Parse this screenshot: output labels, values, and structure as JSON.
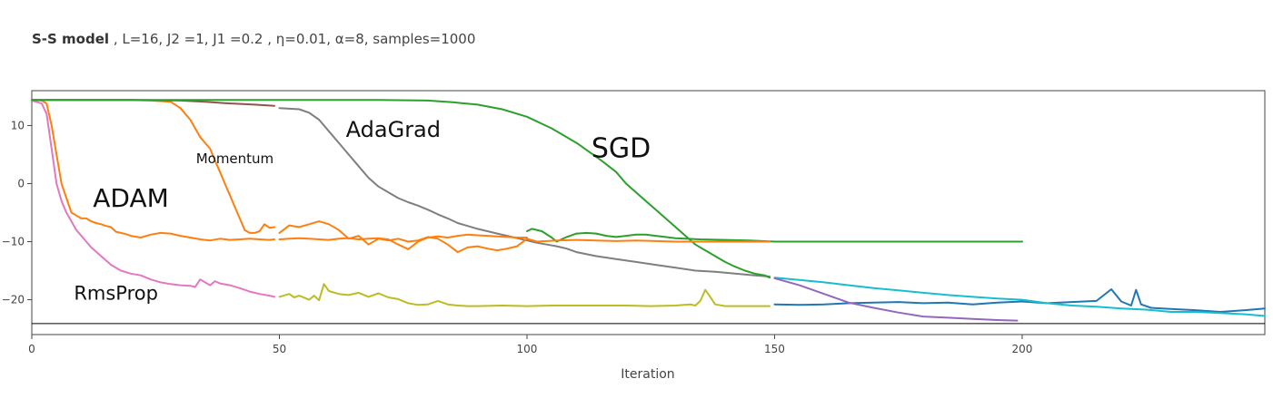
{
  "header": {
    "title_bold": "S-S model",
    "title_rest": " , L=16, J2 =1, J1 =0.2 , η=0.01, α=8, samples=1000"
  },
  "chart_data": {
    "type": "line",
    "title": "S-S model , L=16, J2 =1, J1 =0.2 , η=0.01, α=8, samples=1000",
    "xlabel": "Iteration",
    "ylabel": "",
    "xlim": [
      0,
      249
    ],
    "ylim": [
      -26,
      16
    ],
    "xticks": [
      0,
      50,
      100,
      150,
      200
    ],
    "yticks": [
      10,
      0,
      -10,
      -20
    ],
    "grid": false,
    "reference_line": {
      "y": -24.1,
      "color": "#000000"
    },
    "series": [
      {
        "color": "#e377c2",
        "x": [
          0,
          2,
          3,
          4,
          5,
          6,
          7,
          8,
          9,
          10,
          12,
          14,
          16,
          18,
          20,
          22,
          24,
          26,
          28,
          30,
          32,
          33,
          34,
          35,
          36,
          37,
          38,
          40,
          42,
          44,
          46,
          48,
          49
        ],
        "y": [
          14.3,
          13.8,
          12,
          6,
          0,
          -3,
          -5,
          -6.5,
          -8,
          -9,
          -11,
          -12.5,
          -14,
          -15,
          -15.5,
          -15.8,
          -16.5,
          -17,
          -17.3,
          -17.5,
          -17.6,
          -17.8,
          -16.5,
          -17,
          -17.5,
          -16.8,
          -17.2,
          -17.5,
          -18,
          -18.6,
          -19,
          -19.3,
          -19.5
        ]
      },
      {
        "color": "#ff7f0e",
        "x": [
          0,
          2,
          3,
          4,
          5,
          6,
          7,
          8,
          9,
          10,
          11,
          12,
          13,
          14,
          15,
          16,
          17,
          18,
          19,
          20,
          22,
          24,
          26,
          28,
          30,
          32,
          34,
          36,
          38,
          40,
          42,
          44,
          46,
          48,
          49
        ],
        "y": [
          14.4,
          14.3,
          13.8,
          10,
          5,
          0,
          -2.5,
          -5,
          -5.5,
          -6,
          -6,
          -6.5,
          -6.8,
          -7,
          -7.3,
          -7.5,
          -8.3,
          -8.5,
          -8.7,
          -9,
          -9.3,
          -8.8,
          -8.5,
          -8.6,
          -9,
          -9.3,
          -9.6,
          -9.8,
          -9.5,
          -9.7,
          -9.6,
          -9.5,
          -9.6,
          -9.7,
          -9.6
        ]
      },
      {
        "color": "#ff7f0e",
        "x": [
          0,
          10,
          20,
          24,
          28,
          30,
          32,
          34,
          36,
          37,
          38,
          39,
          40,
          41,
          42,
          43,
          44,
          45,
          46,
          47,
          48,
          49
        ],
        "y": [
          14.4,
          14.4,
          14.4,
          14.3,
          14.1,
          13,
          11,
          8,
          6,
          4,
          2,
          0,
          -2,
          -4,
          -6,
          -8,
          -8.5,
          -8.5,
          -8.2,
          -7,
          -7.6,
          -7.5
        ]
      },
      {
        "color": "#8c564b",
        "x": [
          0,
          10,
          20,
          30,
          35,
          40,
          45,
          49
        ],
        "y": [
          14.4,
          14.4,
          14.4,
          14.3,
          14.1,
          13.8,
          13.6,
          13.4
        ]
      },
      {
        "color": "#7f7f7f",
        "x": [
          50,
          54,
          56,
          58,
          60,
          62,
          64,
          66,
          68,
          70,
          72,
          74,
          76,
          78,
          80,
          82,
          84,
          86,
          88,
          90,
          92,
          94,
          96,
          98,
          100,
          102,
          104,
          106,
          108,
          110,
          114,
          118,
          122,
          126,
          130,
          134,
          138,
          142,
          146,
          149
        ],
        "y": [
          13,
          12.8,
          12.2,
          11,
          9,
          7,
          5,
          3,
          1,
          -0.5,
          -1.5,
          -2.5,
          -3.2,
          -3.8,
          -4.5,
          -5.3,
          -6,
          -6.8,
          -7.3,
          -7.8,
          -8.2,
          -8.6,
          -9,
          -9.4,
          -9.8,
          -10.2,
          -10.5,
          -10.8,
          -11.2,
          -11.8,
          -12.5,
          -13,
          -13.5,
          -14,
          -14.5,
          -15,
          -15.2,
          -15.5,
          -15.8,
          -16
        ]
      },
      {
        "color": "#2ca02c",
        "x": [
          0,
          20,
          40,
          60,
          70,
          80,
          85,
          90,
          95,
          100,
          105,
          110,
          115,
          118,
          120,
          122,
          124,
          126,
          128,
          130,
          132,
          134,
          136,
          138,
          140,
          142,
          144,
          146,
          148,
          149
        ],
        "y": [
          14.4,
          14.4,
          14.4,
          14.4,
          14.4,
          14.3,
          14,
          13.6,
          12.8,
          11.5,
          9.5,
          7,
          4,
          2,
          0,
          -1.5,
          -3,
          -4.5,
          -6,
          -7.5,
          -9,
          -10.5,
          -11.5,
          -12.5,
          -13.5,
          -14.3,
          -15,
          -15.5,
          -15.8,
          -16.2
        ]
      },
      {
        "color": "#2ca02c",
        "x": [
          100,
          101,
          103,
          105,
          106,
          108,
          110,
          112,
          114,
          116,
          118,
          120,
          122,
          124,
          126,
          128,
          130,
          135,
          140,
          145,
          150,
          160,
          180,
          200
        ],
        "y": [
          -8.2,
          -7.8,
          -8.2,
          -9.3,
          -10,
          -9.2,
          -8.6,
          -8.5,
          -8.6,
          -9,
          -9.2,
          -9,
          -8.8,
          -8.8,
          -9,
          -9.2,
          -9.4,
          -9.6,
          -9.7,
          -9.8,
          -10,
          -10,
          -10,
          -10
        ]
      },
      {
        "color": "#ff7f0e",
        "x": [
          50,
          52,
          54,
          56,
          58,
          60,
          62,
          64,
          66,
          68,
          70,
          72,
          74,
          76,
          78,
          80,
          82,
          84,
          86,
          88,
          90,
          92,
          94,
          96,
          98,
          100,
          102,
          106,
          110,
          114,
          118,
          122,
          126,
          130,
          136,
          140,
          145,
          149
        ],
        "y": [
          -8.5,
          -7.2,
          -7.5,
          -7,
          -6.5,
          -7,
          -8,
          -9.5,
          -9,
          -10.5,
          -9.5,
          -9.8,
          -9.5,
          -10,
          -9.8,
          -9.2,
          -9.5,
          -10.5,
          -11.8,
          -11,
          -10.8,
          -11.2,
          -11.5,
          -11.2,
          -10.8,
          -9.5,
          -10,
          -9.8,
          -9.7,
          -9.8,
          -9.9,
          -9.8,
          -9.9,
          -10,
          -10,
          -10,
          -10,
          -10
        ]
      },
      {
        "color": "#ff7f0e",
        "x": [
          50,
          52,
          54,
          56,
          58,
          60,
          62,
          64,
          66,
          68,
          70,
          72,
          74,
          76,
          78,
          80,
          82,
          84,
          86,
          88,
          90,
          92,
          94,
          96,
          98,
          100
        ],
        "y": [
          -9.6,
          -9.5,
          -9.4,
          -9.5,
          -9.6,
          -9.7,
          -9.5,
          -9.4,
          -9.6,
          -9.5,
          -9.4,
          -9.6,
          -10.5,
          -11.3,
          -10,
          -9.3,
          -9.1,
          -9.3,
          -9,
          -8.8,
          -8.9,
          -9,
          -9.1,
          -9.2,
          -9.3,
          -9.3
        ]
      },
      {
        "color": "#bcbd22",
        "x": [
          50,
          52,
          53,
          54,
          56,
          57,
          58,
          59,
          60,
          62,
          64,
          66,
          68,
          70,
          72,
          74,
          76,
          78,
          80,
          82,
          84,
          86,
          88,
          90,
          95,
          100,
          105,
          110,
          115,
          120,
          125,
          130,
          133,
          134,
          135,
          136,
          137,
          138,
          140,
          145,
          149
        ],
        "y": [
          -19.5,
          -19,
          -19.6,
          -19.3,
          -20,
          -19.3,
          -20.1,
          -17.3,
          -18.5,
          -19,
          -19.2,
          -18.8,
          -19.5,
          -18.9,
          -19.6,
          -19.9,
          -20.6,
          -20.9,
          -20.8,
          -20.2,
          -20.8,
          -21,
          -21.1,
          -21.1,
          -21,
          -21.1,
          -21,
          -21,
          -21,
          -21,
          -21.1,
          -21,
          -20.8,
          -21,
          -20.2,
          -18.3,
          -19.5,
          -20.8,
          -21.1,
          -21.1,
          -21.1
        ]
      },
      {
        "color": "#1f77b4",
        "x": [
          150,
          155,
          160,
          165,
          170,
          175,
          180,
          185,
          190,
          195,
          200,
          205,
          210,
          215,
          218,
          220,
          222,
          223,
          224,
          226,
          230,
          235,
          240,
          245,
          249
        ],
        "y": [
          -20.8,
          -20.9,
          -20.8,
          -20.6,
          -20.5,
          -20.4,
          -20.6,
          -20.5,
          -20.8,
          -20.5,
          -20.3,
          -20.6,
          -20.4,
          -20.2,
          -18.2,
          -20.3,
          -21,
          -18.3,
          -20.8,
          -21.4,
          -21.6,
          -21.8,
          -22.1,
          -21.8,
          -21.5
        ]
      },
      {
        "color": "#17becf",
        "x": [
          150,
          155,
          160,
          165,
          170,
          175,
          180,
          185,
          190,
          195,
          200,
          205,
          210,
          215,
          220,
          225,
          230,
          235,
          240,
          245,
          249
        ],
        "y": [
          -16.2,
          -16.6,
          -17,
          -17.5,
          -18,
          -18.4,
          -18.8,
          -19.2,
          -19.5,
          -19.8,
          -20,
          -20.6,
          -21,
          -21.2,
          -21.5,
          -21.7,
          -22.1,
          -22.1,
          -22.3,
          -22.5,
          -22.8
        ]
      },
      {
        "color": "#9467bd",
        "x": [
          150,
          155,
          160,
          165,
          170,
          175,
          180,
          185,
          190,
          195,
          199
        ],
        "y": [
          -16.3,
          -17.5,
          -19,
          -20.5,
          -21.4,
          -22.2,
          -22.9,
          -23.1,
          -23.3,
          -23.5,
          -23.6
        ]
      }
    ],
    "annotations": [
      {
        "text": "Momentum",
        "x": 41,
        "y": 3.5,
        "size": 15
      },
      {
        "text": "AdaGrad",
        "x": 73,
        "y": 8,
        "size": 24
      },
      {
        "text": "SGD",
        "x": 119,
        "y": 4.5,
        "size": 30
      },
      {
        "text": "ADAM",
        "x": 20,
        "y": -4,
        "size": 28
      },
      {
        "text": "RmsProp",
        "x": 17,
        "y": -20,
        "size": 21
      }
    ]
  }
}
